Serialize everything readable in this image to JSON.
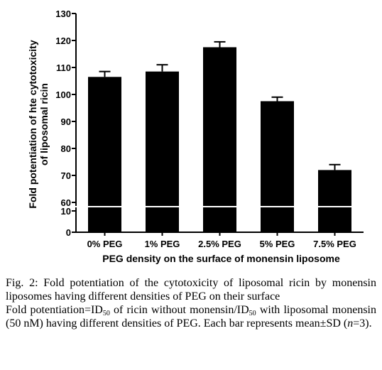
{
  "chart_data": {
    "type": "bar",
    "categories": [
      "0% PEG",
      "1% PEG",
      "2.5% PEG",
      "5% PEG",
      "7.5% PEG"
    ],
    "values": [
      106.5,
      108.5,
      117.5,
      97.5,
      72
    ],
    "errors": [
      2,
      2.5,
      2,
      1.5,
      2
    ],
    "xlabel": "PEG density on the surface of monensin liposome",
    "ylabel_line1": "Fold potentiation of hte cytotoxicity",
    "ylabel_line2": "of liposomal ricin",
    "y_axis_break": {
      "lower": [
        0,
        10
      ],
      "upper": [
        60,
        130
      ]
    },
    "yticks_lower": [
      0,
      10
    ],
    "yticks_upper": [
      60,
      70,
      80,
      90,
      100,
      110,
      120,
      130
    ],
    "bar_color": "#000000",
    "grid": false
  },
  "caption": {
    "fig_label": "Fig. 2:",
    "title_text": "Fold potentiation of the cytotoxicity of liposomal ricin by monensin liposomes having different densities of PEG on their surface",
    "line2_a": "Fold potentiation=ID",
    "sub1": "50",
    "line2_b": " of ricin without monensin/ID",
    "sub2": "50",
    "line2_c": " with liposomal monensin (50 nM) having different densities of PEG. Each bar represents mean±SD (",
    "n_var": "n",
    "line2_d": "=3)."
  }
}
